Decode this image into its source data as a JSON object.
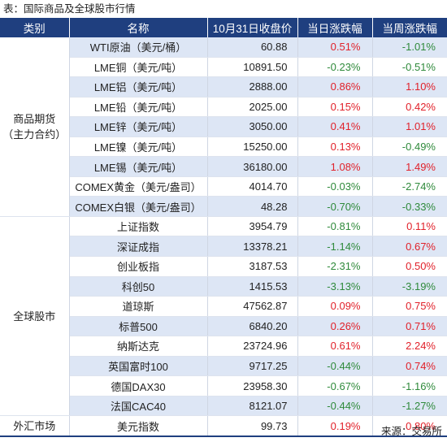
{
  "title": "表：国际商品及全球股市行情",
  "source": "来源：交易所",
  "colors": {
    "header_bg": "#1f3f7f",
    "stripe_bg": "#dde6f5",
    "up": "#e1212a",
    "down": "#2f8a3b"
  },
  "headers": [
    "类别",
    "名称",
    "10月31日收盘价",
    "当日涨跌幅",
    "当周涨跌幅"
  ],
  "groups": [
    {
      "category": "商品期货\n（主力合约）",
      "rows": [
        {
          "name": "WTI原油（美元/桶）",
          "price": "60.88",
          "day": "0.51%",
          "week": "-1.01%"
        },
        {
          "name": "LME铜（美元/吨）",
          "price": "10891.50",
          "day": "-0.23%",
          "week": "-0.51%"
        },
        {
          "name": "LME铝（美元/吨）",
          "price": "2888.00",
          "day": "0.86%",
          "week": "1.10%"
        },
        {
          "name": "LME铅（美元/吨）",
          "price": "2025.00",
          "day": "0.15%",
          "week": "0.42%"
        },
        {
          "name": "LME锌（美元/吨）",
          "price": "3050.00",
          "day": "0.41%",
          "week": "1.01%"
        },
        {
          "name": "LME镍（美元/吨）",
          "price": "15250.00",
          "day": "0.13%",
          "week": "-0.49%"
        },
        {
          "name": "LME锡（美元/吨）",
          "price": "36180.00",
          "day": "1.08%",
          "week": "1.49%"
        },
        {
          "name": "COMEX黄金（美元/盎司）",
          "price": "4014.70",
          "day": "-0.03%",
          "week": "-2.74%"
        },
        {
          "name": "COMEX白银（美元/盎司）",
          "price": "48.28",
          "day": "-0.70%",
          "week": "-0.33%"
        }
      ]
    },
    {
      "category": "全球股市",
      "rows": [
        {
          "name": "上证指数",
          "price": "3954.79",
          "day": "-0.81%",
          "week": "0.11%"
        },
        {
          "name": "深证成指",
          "price": "13378.21",
          "day": "-1.14%",
          "week": "0.67%"
        },
        {
          "name": "创业板指",
          "price": "3187.53",
          "day": "-2.31%",
          "week": "0.50%"
        },
        {
          "name": "科创50",
          "price": "1415.53",
          "day": "-3.13%",
          "week": "-3.19%"
        },
        {
          "name": "道琼斯",
          "price": "47562.87",
          "day": "0.09%",
          "week": "0.75%"
        },
        {
          "name": "标普500",
          "price": "6840.20",
          "day": "0.26%",
          "week": "0.71%"
        },
        {
          "name": "纳斯达克",
          "price": "23724.96",
          "day": "0.61%",
          "week": "2.24%"
        },
        {
          "name": "英国富时100",
          "price": "9717.25",
          "day": "-0.44%",
          "week": "0.74%"
        },
        {
          "name": "德国DAX30",
          "price": "23958.30",
          "day": "-0.67%",
          "week": "-1.16%"
        },
        {
          "name": "法国CAC40",
          "price": "8121.07",
          "day": "-0.44%",
          "week": "-1.27%"
        }
      ]
    },
    {
      "category": "外汇市场",
      "rows": [
        {
          "name": "美元指数",
          "price": "99.73",
          "day": "0.19%",
          "week": "0.80%"
        }
      ]
    }
  ]
}
